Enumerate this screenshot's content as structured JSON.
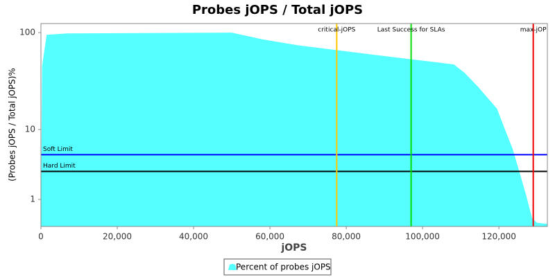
{
  "chart_data": {
    "type": "area",
    "title": "Probes jOPS / Total jOPS",
    "x_label": "jOPS",
    "y_label": "(Probes jOPS / Total jOPS)%",
    "yscale": "log",
    "x": [
      0,
      300,
      1500,
      7000,
      50000,
      58200,
      67300,
      77500,
      87300,
      97000,
      108200,
      111000,
      114500,
      119500,
      121800,
      123600,
      125500,
      127300,
      128700,
      130000,
      132700
    ],
    "series": [
      {
        "name": "Percent of probes jOPS",
        "color": "#55ffff",
        "values": [
          0,
          45,
          95,
          98,
          100,
          85,
          74,
          66,
          59,
          53,
          47,
          38.5,
          27.7,
          16.4,
          9.5,
          5.9,
          2.8,
          1.1,
          0.24,
          0.1,
          0.07
        ]
      }
    ],
    "xlim": [
      0,
      132700
    ],
    "ylim": [
      0,
      124
    ],
    "xticks": [
      0,
      {
        "value": 20000,
        "label": "20,000"
      },
      {
        "value": 40000,
        "label": "40,000"
      },
      {
        "value": 60000,
        "label": "60,000"
      },
      {
        "value": 80000,
        "label": "80,000"
      },
      {
        "value": 100000,
        "label": "100,000"
      },
      {
        "value": 120000,
        "label": "120,000"
      }
    ],
    "yticks": [
      1,
      10,
      100
    ],
    "x_markers": [
      {
        "label": "critical-jOPS",
        "value": 77500,
        "color": "#ffc800"
      },
      {
        "label": "Last Success for SLAs",
        "value": 97000,
        "color": "#00dd00"
      },
      {
        "label": "max-jOP",
        "value": 129000,
        "color": "#ee0000"
      }
    ],
    "y_markers": [
      {
        "label": "Soft Limit",
        "value": 5,
        "color": "#0000ff"
      },
      {
        "label": "Hard Limit",
        "value": 3,
        "color": "#000000"
      }
    ]
  }
}
